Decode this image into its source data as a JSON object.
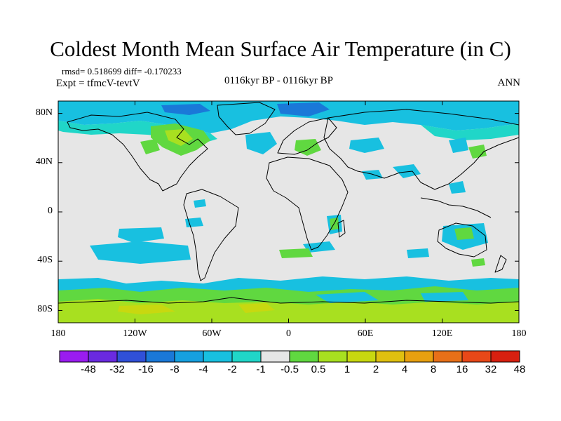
{
  "title": "Coldest Month Mean Surface Air Temperature (in C)",
  "stats_line": "rmsd= 0.518699 diff= -0.170233",
  "experiment_line": "Expt = tfmcV-tevtV",
  "period_line": "0116kyr BP - 0116kyr BP",
  "season": "ANN",
  "map": {
    "projection": "cylindrical equidistant",
    "lon_range": [
      -180,
      180
    ],
    "lat_range": [
      -90,
      90
    ],
    "background_color": "#e6e6e6",
    "coastline_color": "#000000"
  },
  "axes": {
    "y_ticks": [
      {
        "value": 80,
        "label": "80N"
      },
      {
        "value": 40,
        "label": "40N"
      },
      {
        "value": 0,
        "label": "0"
      },
      {
        "value": -40,
        "label": "40S"
      },
      {
        "value": -80,
        "label": "80S"
      }
    ],
    "x_ticks": [
      {
        "value": -180,
        "label": "180"
      },
      {
        "value": -120,
        "label": "120W"
      },
      {
        "value": -60,
        "label": "60W"
      },
      {
        "value": 0,
        "label": "0"
      },
      {
        "value": 60,
        "label": "60E"
      },
      {
        "value": 120,
        "label": "120E"
      },
      {
        "value": 180,
        "label": "180"
      }
    ]
  },
  "colorbar": {
    "colors": [
      "#9a1cf0",
      "#6a2ae0",
      "#3050d8",
      "#1a78d8",
      "#16a0e0",
      "#18c0e0",
      "#20d6c8",
      "#e6e6e6",
      "#60d840",
      "#a8e020",
      "#c8d810",
      "#e0c010",
      "#e8a010",
      "#e87018",
      "#e84818",
      "#d82010"
    ],
    "labels": [
      "-48",
      "-32",
      "-16",
      "-8",
      "-4",
      "-2",
      "-1",
      "-0.5",
      "0.5",
      "1",
      "2",
      "4",
      "8",
      "16",
      "32",
      "48"
    ]
  }
}
